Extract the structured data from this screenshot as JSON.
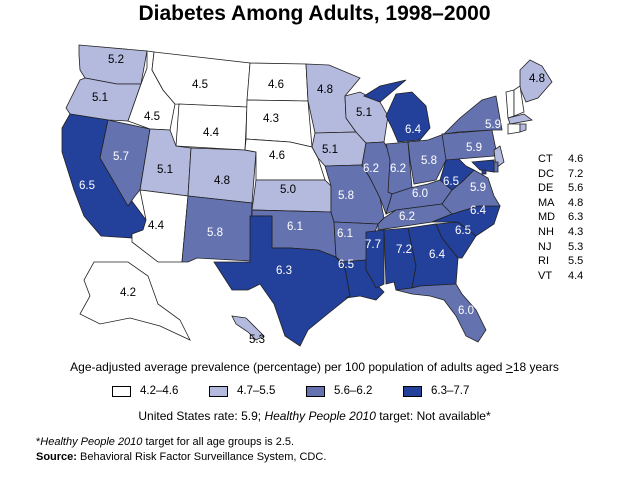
{
  "title": "Diabetes Among Adults, 1998–2000",
  "colors": {
    "bin1": "#ffffff",
    "bin2": "#b4b9de",
    "bin3": "#6472b0",
    "bin4": "#23409a",
    "border": "#222222"
  },
  "states": [
    {
      "abbr": "WA",
      "value": "5.2"
    },
    {
      "abbr": "OR",
      "value": "5.1"
    },
    {
      "abbr": "CA",
      "value": "6.5"
    },
    {
      "abbr": "NV",
      "value": "5.7"
    },
    {
      "abbr": "ID",
      "value": "4.5"
    },
    {
      "abbr": "MT",
      "value": "4.5"
    },
    {
      "abbr": "WY",
      "value": "4.4"
    },
    {
      "abbr": "UT",
      "value": "5.1"
    },
    {
      "abbr": "AZ",
      "value": "4.4"
    },
    {
      "abbr": "CO",
      "value": "4.8"
    },
    {
      "abbr": "NM",
      "value": "5.8"
    },
    {
      "abbr": "ND",
      "value": "4.6"
    },
    {
      "abbr": "SD",
      "value": "4.3"
    },
    {
      "abbr": "NE",
      "value": "4.6"
    },
    {
      "abbr": "KS",
      "value": "5.0"
    },
    {
      "abbr": "OK",
      "value": "6.1"
    },
    {
      "abbr": "TX",
      "value": "6.3"
    },
    {
      "abbr": "MN",
      "value": "4.8"
    },
    {
      "abbr": "IA",
      "value": "5.1"
    },
    {
      "abbr": "MO",
      "value": "5.8"
    },
    {
      "abbr": "AR",
      "value": "6.1"
    },
    {
      "abbr": "LA",
      "value": "6.5"
    },
    {
      "abbr": "WI",
      "value": "5.1"
    },
    {
      "abbr": "IL",
      "value": "6.2"
    },
    {
      "abbr": "MI",
      "value": "6.4"
    },
    {
      "abbr": "IN",
      "value": "6.2"
    },
    {
      "abbr": "OH",
      "value": "5.8"
    },
    {
      "abbr": "KY",
      "value": "6.0"
    },
    {
      "abbr": "TN",
      "value": "6.2"
    },
    {
      "abbr": "MS",
      "value": "7.7"
    },
    {
      "abbr": "AL",
      "value": "7.2"
    },
    {
      "abbr": "GA",
      "value": "6.4"
    },
    {
      "abbr": "FL",
      "value": "6.0"
    },
    {
      "abbr": "SC",
      "value": "6.5"
    },
    {
      "abbr": "NC",
      "value": "6.4"
    },
    {
      "abbr": "VA",
      "value": "5.9"
    },
    {
      "abbr": "WV",
      "value": "6.5"
    },
    {
      "abbr": "PA",
      "value": "5.9"
    },
    {
      "abbr": "NY",
      "value": "5.9"
    },
    {
      "abbr": "ME",
      "value": "4.8"
    },
    {
      "abbr": "VT",
      "value": "4.4"
    },
    {
      "abbr": "NH",
      "value": "4.3"
    },
    {
      "abbr": "MA",
      "value": "4.8"
    },
    {
      "abbr": "CT",
      "value": "4.6"
    },
    {
      "abbr": "RI",
      "value": "5.5"
    },
    {
      "abbr": "NJ",
      "value": "5.3"
    },
    {
      "abbr": "DE",
      "value": "5.6"
    },
    {
      "abbr": "MD",
      "value": "6.3"
    },
    {
      "abbr": "DC",
      "value": "7.2"
    },
    {
      "abbr": "AK",
      "value": "4.2"
    },
    {
      "abbr": "HI",
      "value": "5.3"
    }
  ],
  "small_states": [
    {
      "abbr": "CT",
      "value": "4.6"
    },
    {
      "abbr": "DC",
      "value": "7.2"
    },
    {
      "abbr": "DE",
      "value": "5.6"
    },
    {
      "abbr": "MA",
      "value": "4.8"
    },
    {
      "abbr": "MD",
      "value": "6.3"
    },
    {
      "abbr": "NH",
      "value": "4.3"
    },
    {
      "abbr": "NJ",
      "value": "5.3"
    },
    {
      "abbr": "RI",
      "value": "5.5"
    },
    {
      "abbr": "VT",
      "value": "4.4"
    }
  ],
  "caption": {
    "text": "Age-adjusted average prevalence (percentage) per 100 population of adults aged ",
    "ge": ">",
    "rest": "18 years"
  },
  "legend": [
    {
      "label": "4.2–4.6",
      "color": "#ffffff"
    },
    {
      "label": "4.7–5.5",
      "color": "#b4b9de"
    },
    {
      "label": "5.6–6.2",
      "color": "#6472b0"
    },
    {
      "label": "6.3–7.7",
      "color": "#23409a"
    }
  ],
  "us_rate": {
    "prefix": "United States rate: 5.9; ",
    "hp_label": "Healthy People 2010",
    "suffix": " target: Not available*"
  },
  "footnote": {
    "star": "*",
    "hp_label": "Healthy People 2010",
    "hp_rest": " target for all age groups is 2.5.",
    "source_label": "Source:",
    "source_text": " Behavioral Risk Factor Surveillance System, CDC."
  }
}
